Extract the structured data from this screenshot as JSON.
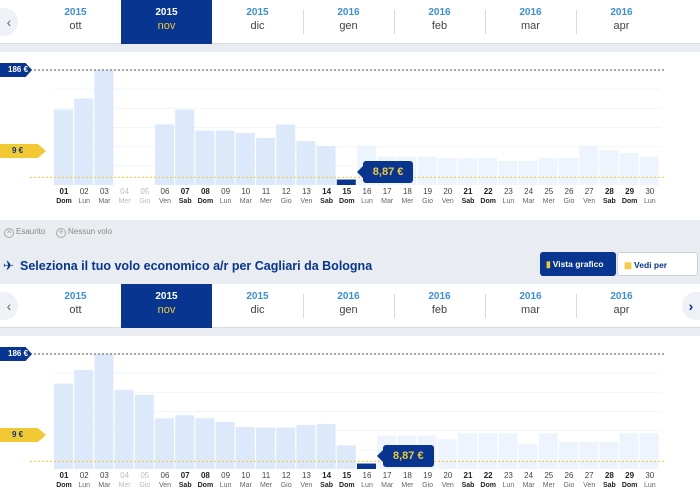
{
  "months": [
    {
      "year": "2015",
      "month": "ott",
      "active": false
    },
    {
      "year": "2015",
      "month": "nov",
      "active": true
    },
    {
      "year": "2015",
      "month": "dic",
      "active": false
    },
    {
      "year": "2016",
      "month": "gen",
      "active": false
    },
    {
      "year": "2016",
      "month": "feb",
      "active": false
    },
    {
      "year": "2016",
      "month": "mar",
      "active": false
    },
    {
      "year": "2016",
      "month": "apr",
      "active": false
    }
  ],
  "nav": {
    "prev_glyph": "‹",
    "next_glyph": "›"
  },
  "price_tags": {
    "max": "186 €",
    "min": "9 €",
    "selected": "8,87 €"
  },
  "days": [
    {
      "n": "01",
      "w": "Dom",
      "bold": true,
      "off": false
    },
    {
      "n": "02",
      "w": "Lun",
      "bold": false,
      "off": false
    },
    {
      "n": "03",
      "w": "Mar",
      "bold": false,
      "off": false
    },
    {
      "n": "04",
      "w": "Mer",
      "bold": false,
      "off": true
    },
    {
      "n": "05",
      "w": "Gio",
      "bold": false,
      "off": true
    },
    {
      "n": "06",
      "w": "Ven",
      "bold": false,
      "off": false
    },
    {
      "n": "07",
      "w": "Sab",
      "bold": true,
      "off": false
    },
    {
      "n": "08",
      "w": "Dom",
      "bold": true,
      "off": false
    },
    {
      "n": "09",
      "w": "Lun",
      "bold": false,
      "off": false
    },
    {
      "n": "10",
      "w": "Mar",
      "bold": false,
      "off": false
    },
    {
      "n": "11",
      "w": "Mer",
      "bold": false,
      "off": false
    },
    {
      "n": "12",
      "w": "Gio",
      "bold": false,
      "off": false
    },
    {
      "n": "13",
      "w": "Ven",
      "bold": false,
      "off": false
    },
    {
      "n": "14",
      "w": "Sab",
      "bold": true,
      "off": false
    },
    {
      "n": "15",
      "w": "Dom",
      "bold": true,
      "off": false
    },
    {
      "n": "16",
      "w": "Lun",
      "bold": false,
      "off": false
    },
    {
      "n": "17",
      "w": "Mar",
      "bold": false,
      "off": false
    },
    {
      "n": "18",
      "w": "Mer",
      "bold": false,
      "off": false
    },
    {
      "n": "19",
      "w": "Gio",
      "bold": false,
      "off": false
    },
    {
      "n": "20",
      "w": "Ven",
      "bold": false,
      "off": false
    },
    {
      "n": "21",
      "w": "Sab",
      "bold": true,
      "off": false
    },
    {
      "n": "22",
      "w": "Dom",
      "bold": true,
      "off": false
    },
    {
      "n": "23",
      "w": "Lun",
      "bold": false,
      "off": false
    },
    {
      "n": "24",
      "w": "Mar",
      "bold": false,
      "off": false
    },
    {
      "n": "25",
      "w": "Mer",
      "bold": false,
      "off": false
    },
    {
      "n": "26",
      "w": "Gio",
      "bold": false,
      "off": false
    },
    {
      "n": "27",
      "w": "Ven",
      "bold": false,
      "off": false
    },
    {
      "n": "28",
      "w": "Sab",
      "bold": true,
      "off": false
    },
    {
      "n": "29",
      "w": "Dom",
      "bold": true,
      "off": false
    },
    {
      "n": "30",
      "w": "Lun",
      "bold": false,
      "off": false
    }
  ],
  "legend": {
    "sold_out": "Esaurito",
    "no_flight": "Nessun volo"
  },
  "heading": {
    "title": "Seleziona il tuo volo economico a/r per Cagliari da Bologna"
  },
  "view_buttons": {
    "graph": "Vista grafico",
    "month": "Vedi per mese"
  },
  "colors": {
    "navy": "#073590",
    "yellow": "#f1c933",
    "bar": "#dce9fb",
    "bar_light": "#eef4fd",
    "bar_selected": "#073590"
  },
  "chart_data": [
    {
      "type": "bar",
      "title": "",
      "categories": [
        "01",
        "02",
        "03",
        "04",
        "05",
        "06",
        "07",
        "08",
        "09",
        "10",
        "11",
        "12",
        "13",
        "14",
        "15",
        "16",
        "17",
        "18",
        "19",
        "20",
        "21",
        "22",
        "23",
        "24",
        "25",
        "26",
        "27",
        "28",
        "29",
        "30"
      ],
      "values": [
        122,
        140,
        186,
        0,
        0,
        98,
        122,
        88,
        88,
        84,
        76,
        98,
        71,
        63,
        8.87,
        64,
        46,
        46,
        46,
        44,
        44,
        44,
        39,
        39,
        44,
        44,
        64,
        56,
        52,
        46
      ],
      "selected_index": 14,
      "reference_lines": {
        "max": 186,
        "min": 9
      },
      "ylim": [
        0,
        186
      ]
    },
    {
      "type": "bar",
      "title": "",
      "categories": [
        "01",
        "02",
        "03",
        "04",
        "05",
        "06",
        "07",
        "08",
        "09",
        "10",
        "11",
        "12",
        "13",
        "14",
        "15",
        "16",
        "17",
        "18",
        "19",
        "20",
        "21",
        "22",
        "23",
        "24",
        "25",
        "26",
        "27",
        "28",
        "29",
        "30"
      ],
      "values": [
        138,
        160,
        186,
        128,
        120,
        82,
        87,
        82,
        76,
        68,
        67,
        67,
        71,
        73,
        38,
        8.87,
        54,
        54,
        54,
        48,
        58,
        58,
        58,
        40,
        58,
        44,
        44,
        44,
        58,
        58
      ],
      "selected_index": 15,
      "reference_lines": {
        "max": 186,
        "min": 9
      },
      "ylim": [
        0,
        186
      ]
    }
  ]
}
